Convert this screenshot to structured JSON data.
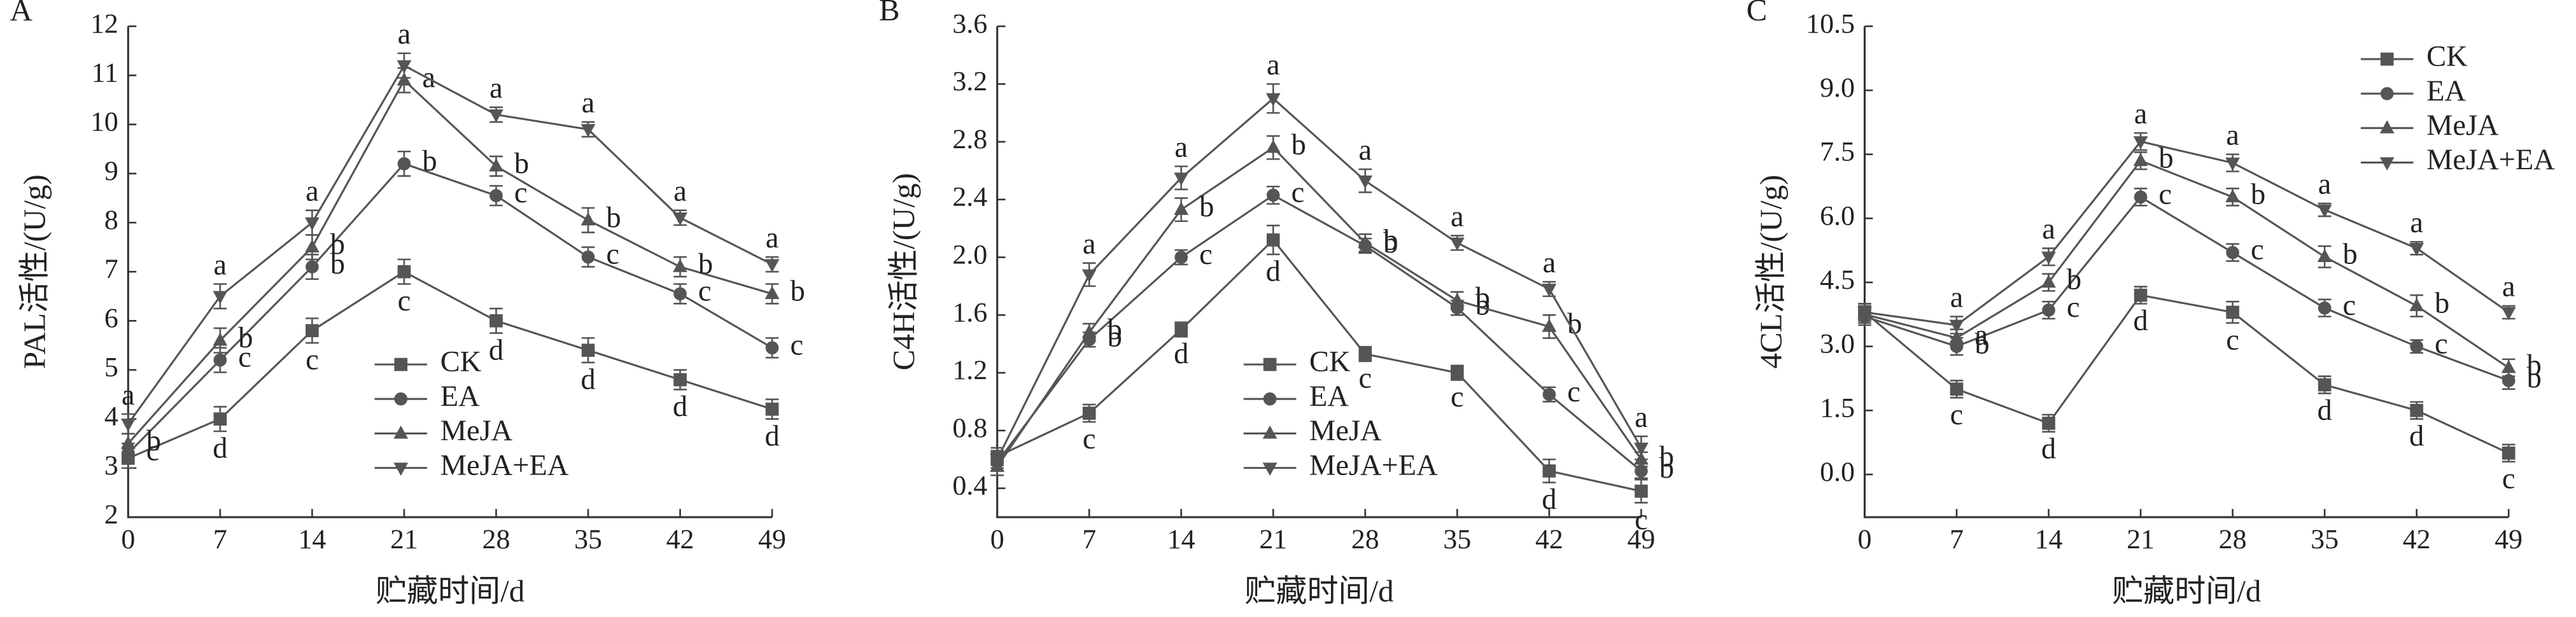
{
  "chart_data": [
    {
      "type": "line",
      "panel": "A",
      "y_label": "PAL活性/(U/g)",
      "x_label": "贮藏时间/d",
      "x": [
        0,
        7,
        14,
        21,
        28,
        35,
        42,
        49
      ],
      "xlim": [
        0,
        49
      ],
      "xticks": [
        0,
        7,
        14,
        21,
        28,
        35,
        42,
        49
      ],
      "ylim": [
        2,
        12
      ],
      "yticks": [
        2,
        3,
        4,
        5,
        6,
        7,
        8,
        9,
        10,
        11,
        12
      ],
      "legend": "lower center",
      "series": [
        {
          "name": "CK",
          "color": "#555555",
          "marker": "square",
          "values": [
            3.2,
            4.0,
            5.8,
            7.0,
            6.0,
            5.4,
            4.8,
            4.2
          ],
          "errors": [
            0.2,
            0.25,
            0.25,
            0.25,
            0.25,
            0.25,
            0.2,
            0.2
          ],
          "letters": [
            null,
            "d",
            "c",
            "c",
            "d",
            "d",
            "d",
            "d"
          ]
        },
        {
          "name": "EA",
          "color": "#555555",
          "marker": "circle",
          "values": [
            3.3,
            5.2,
            7.1,
            9.2,
            8.55,
            7.3,
            6.55,
            5.45
          ],
          "errors": [
            0.2,
            0.25,
            0.25,
            0.25,
            0.2,
            0.2,
            0.2,
            0.2
          ],
          "letters": [
            "c",
            "c",
            "b",
            "b",
            "c",
            "c",
            "c",
            "c"
          ]
        },
        {
          "name": "MeJA",
          "color": "#555555",
          "marker": "triangle",
          "values": [
            3.5,
            5.6,
            7.5,
            10.9,
            9.15,
            8.05,
            7.1,
            6.55
          ],
          "errors": [
            0.2,
            0.25,
            0.25,
            0.25,
            0.2,
            0.25,
            0.2,
            0.2
          ],
          "letters": [
            "b",
            "b",
            "b",
            "a",
            "b",
            "b",
            "b",
            "b"
          ]
        },
        {
          "name": "MeJA+EA",
          "color": "#555555",
          "marker": "triangle-down",
          "values": [
            3.9,
            6.5,
            8.0,
            11.2,
            10.2,
            9.9,
            8.1,
            7.15
          ],
          "errors": [
            0.2,
            0.25,
            0.25,
            0.25,
            0.15,
            0.15,
            0.15,
            0.15
          ],
          "letters": [
            "a",
            "a",
            "a",
            "a",
            "a",
            "a",
            "a",
            "a"
          ]
        }
      ]
    },
    {
      "type": "line",
      "panel": "B",
      "y_label": "C4H活性/(U/g)",
      "x_label": "贮藏时间/d",
      "x": [
        0,
        7,
        14,
        21,
        28,
        35,
        42,
        49
      ],
      "xlim": [
        0,
        49
      ],
      "xticks": [
        0,
        7,
        14,
        21,
        28,
        35,
        42,
        49
      ],
      "ylim": [
        0.2,
        3.6
      ],
      "yticks": [
        0.4,
        0.8,
        1.2,
        1.6,
        {
          "value": 2,
          "label": "2.0"
        },
        2.4,
        2.8,
        3.2,
        3.6
      ],
      "legend": "lower center",
      "series": [
        {
          "name": "CK",
          "color": "#555555",
          "marker": "square",
          "values": [
            0.62,
            0.92,
            1.5,
            2.12,
            1.33,
            1.2,
            0.52,
            0.38
          ],
          "errors": [
            0.06,
            0.06,
            0.05,
            0.1,
            0.05,
            0.05,
            0.08,
            0.08
          ],
          "letters": [
            null,
            "c",
            "d",
            "d",
            "c",
            "c",
            "d",
            "c"
          ]
        },
        {
          "name": "EA",
          "color": "#555555",
          "marker": "circle",
          "values": [
            0.58,
            1.43,
            2.0,
            2.43,
            2.08,
            1.65,
            1.05,
            0.52
          ],
          "errors": [
            0.06,
            0.05,
            0.05,
            0.06,
            0.05,
            0.05,
            0.05,
            0.05
          ],
          "letters": [
            null,
            "b",
            "c",
            "c",
            "b",
            "b",
            "c",
            "b"
          ]
        },
        {
          "name": "MeJA",
          "color": "#555555",
          "marker": "triangle",
          "values": [
            0.55,
            1.48,
            2.33,
            2.76,
            2.1,
            1.7,
            1.52,
            0.6
          ],
          "errors": [
            0.06,
            0.06,
            0.08,
            0.08,
            0.06,
            0.06,
            0.08,
            0.05
          ],
          "letters": [
            null,
            "b",
            "b",
            "b",
            "b",
            "b",
            "b",
            "b"
          ]
        },
        {
          "name": "MeJA+EA",
          "color": "#555555",
          "marker": "triangle-down",
          "values": [
            0.6,
            1.88,
            2.55,
            3.1,
            2.53,
            2.1,
            1.78,
            0.68
          ],
          "errors": [
            0.06,
            0.08,
            0.08,
            0.1,
            0.08,
            0.05,
            0.05,
            0.08
          ],
          "letters": [
            null,
            "a",
            "a",
            "a",
            "a",
            "a",
            "a",
            "a"
          ]
        }
      ]
    },
    {
      "type": "line",
      "panel": "C",
      "y_label": "4CL活性/(U/g)",
      "x_label": "贮藏时间/d",
      "x": [
        0,
        7,
        14,
        21,
        28,
        35,
        42,
        49
      ],
      "xlim": [
        0,
        49
      ],
      "xticks": [
        0,
        7,
        14,
        21,
        28,
        35,
        42,
        49
      ],
      "ylim": [
        -1,
        10.5
      ],
      "yticks": [
        {
          "value": 0,
          "label": "0.0"
        },
        1.5,
        {
          "value": 3,
          "label": "3.0"
        },
        4.5,
        {
          "value": 6,
          "label": "6.0"
        },
        7.5,
        {
          "value": 9,
          "label": "9.0"
        },
        10.5
      ],
      "legend": "upper right",
      "series": [
        {
          "name": "CK",
          "color": "#555555",
          "marker": "square",
          "values": [
            3.8,
            2.0,
            1.2,
            4.2,
            3.8,
            2.1,
            1.5,
            0.5
          ],
          "errors": [
            0.2,
            0.2,
            0.2,
            0.2,
            0.25,
            0.2,
            0.2,
            0.2
          ],
          "letters": [
            null,
            "c",
            "d",
            "d",
            "c",
            "d",
            "d",
            "c"
          ]
        },
        {
          "name": "EA",
          "color": "#555555",
          "marker": "circle",
          "values": [
            3.7,
            3.0,
            3.85,
            6.5,
            5.2,
            3.9,
            3.0,
            2.2
          ],
          "errors": [
            0.2,
            0.2,
            0.2,
            0.2,
            0.2,
            0.2,
            0.15,
            0.2
          ],
          "letters": [
            null,
            "b",
            "c",
            "c",
            "c",
            "c",
            "c",
            "b"
          ]
        },
        {
          "name": "MeJA",
          "color": "#555555",
          "marker": "triangle",
          "values": [
            3.75,
            3.2,
            4.5,
            7.35,
            6.5,
            5.1,
            3.95,
            2.5
          ],
          "errors": [
            0.2,
            0.2,
            0.2,
            0.2,
            0.2,
            0.25,
            0.25,
            0.2
          ],
          "letters": [
            null,
            "a",
            "b",
            "b",
            "b",
            "b",
            "b",
            "b"
          ]
        },
        {
          "name": "MeJA+EA",
          "color": "#555555",
          "marker": "triangle-down",
          "values": [
            3.8,
            3.5,
            5.1,
            7.8,
            7.3,
            6.2,
            5.3,
            3.8
          ],
          "errors": [
            0.2,
            0.2,
            0.2,
            0.2,
            0.2,
            0.15,
            0.15,
            0.15
          ],
          "letters": [
            null,
            "a",
            "a",
            "a",
            "a",
            "a",
            "a",
            "a"
          ]
        }
      ]
    }
  ]
}
